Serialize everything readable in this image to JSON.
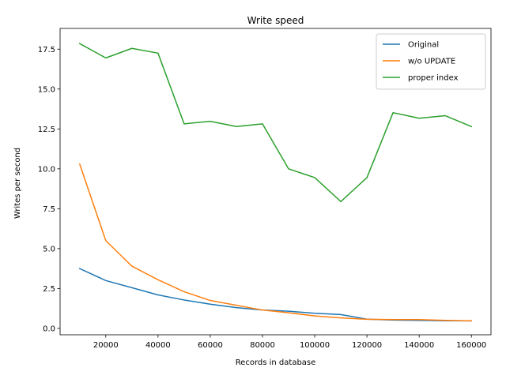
{
  "chart_data": {
    "type": "line",
    "title": "Write speed",
    "xlabel": "Records in database",
    "ylabel": "Writes per second",
    "xlim": [
      2500,
      167500
    ],
    "ylim": [
      -0.4,
      18.8
    ],
    "xticks": [
      20000,
      40000,
      60000,
      80000,
      100000,
      120000,
      140000,
      160000
    ],
    "yticks": [
      0.0,
      2.5,
      5.0,
      7.5,
      10.0,
      12.5,
      15.0,
      17.5
    ],
    "xtick_labels": [
      "20000",
      "40000",
      "60000",
      "80000",
      "100000",
      "120000",
      "140000",
      "160000"
    ],
    "ytick_labels": [
      "0.0",
      "2.5",
      "5.0",
      "7.5",
      "10.0",
      "12.5",
      "15.0",
      "17.5"
    ],
    "grid": false,
    "legend_position": "top-right",
    "x": [
      10000,
      20000,
      30000,
      40000,
      50000,
      60000,
      70000,
      80000,
      90000,
      100000,
      110000,
      120000,
      130000,
      140000,
      150000,
      160000
    ],
    "series": [
      {
        "name": "Original",
        "color": "#1f77b4",
        "values": [
          3.75,
          3.0,
          2.55,
          2.1,
          1.78,
          1.52,
          1.3,
          1.15,
          1.08,
          0.95,
          0.87,
          0.58,
          0.52,
          0.5,
          0.48,
          0.47
        ]
      },
      {
        "name": "w/o UPDATE",
        "color": "#ff7f0e",
        "values": [
          10.3,
          5.5,
          3.9,
          3.05,
          2.3,
          1.75,
          1.45,
          1.15,
          0.98,
          0.78,
          0.66,
          0.57,
          0.55,
          0.55,
          0.5,
          0.47
        ]
      },
      {
        "name": "proper index",
        "color": "#2ca02c",
        "values": [
          17.85,
          16.95,
          17.55,
          17.25,
          12.82,
          12.98,
          12.65,
          12.82,
          10.0,
          9.45,
          7.95,
          9.45,
          13.52,
          13.17,
          13.33,
          12.65
        ]
      }
    ]
  }
}
